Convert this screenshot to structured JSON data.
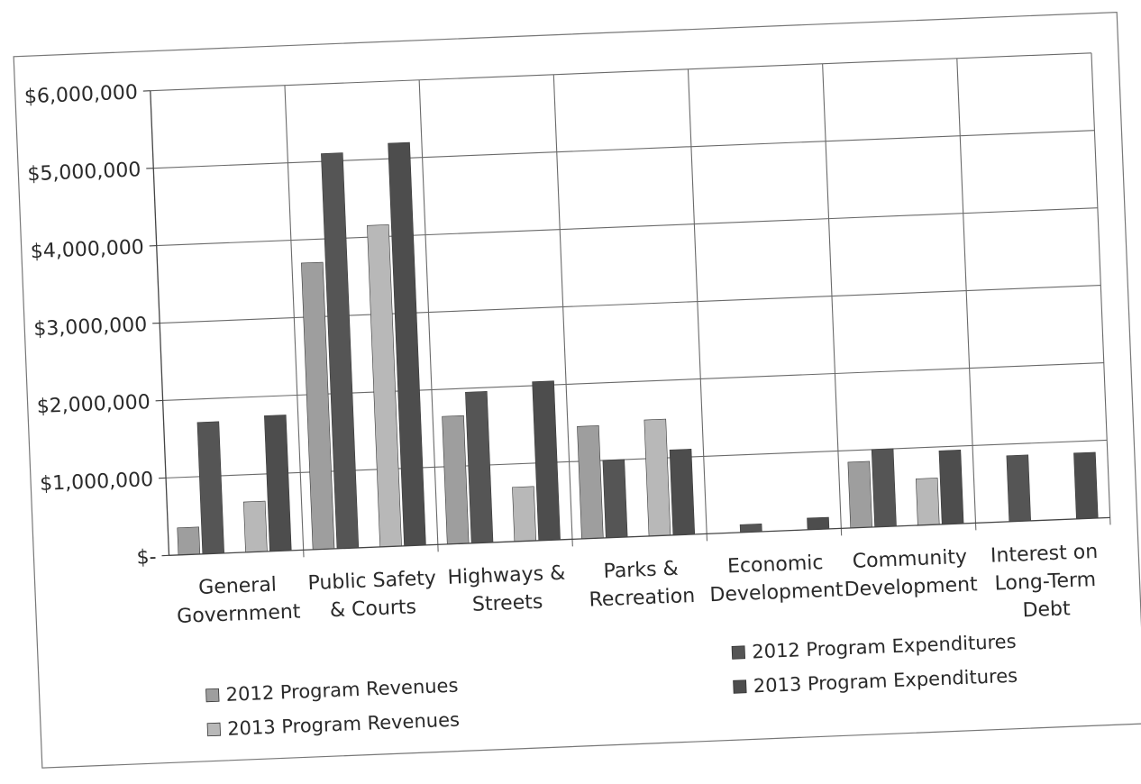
{
  "chart_data": {
    "type": "bar",
    "categories": [
      [
        "General",
        "Government"
      ],
      [
        "Public Safety",
        "& Courts"
      ],
      [
        "Highways &",
        "Streets"
      ],
      [
        "Parks &",
        "Recreation"
      ],
      [
        "Economic",
        "Development"
      ],
      [
        "Community",
        "Development"
      ],
      [
        "Interest on",
        "Long-Term",
        "Debt"
      ]
    ],
    "series": [
      {
        "name": "2012 Program Revenues",
        "color": "#9e9e9e",
        "values": [
          350000,
          3700000,
          1650000,
          1450000,
          0,
          850000,
          0
        ]
      },
      {
        "name": "2012  Program Expenditures",
        "color": "#555555",
        "values": [
          1700000,
          5100000,
          1950000,
          1000000,
          100000,
          1000000,
          850000
        ]
      },
      {
        "name": "2013 Program Revenues",
        "color": "#b8b8b8",
        "values": [
          650000,
          4150000,
          700000,
          1500000,
          0,
          600000,
          0
        ]
      },
      {
        "name": "2013 Program Expenditures",
        "color": "#4d4d4d",
        "values": [
          1750000,
          5200000,
          2050000,
          1100000,
          150000,
          950000,
          850000
        ]
      }
    ],
    "yticks": [
      {
        "value": 0,
        "label": "$-"
      },
      {
        "value": 1000000,
        "label": "$1,000,000"
      },
      {
        "value": 2000000,
        "label": "$2,000,000"
      },
      {
        "value": 3000000,
        "label": "$3,000,000"
      },
      {
        "value": 4000000,
        "label": "$4,000,000"
      },
      {
        "value": 5000000,
        "label": "$5,000,000"
      },
      {
        "value": 6000000,
        "label": "$6,000,000"
      }
    ],
    "ylim": [
      0,
      6000000
    ],
    "grid": true,
    "legend_position": "bottom"
  }
}
